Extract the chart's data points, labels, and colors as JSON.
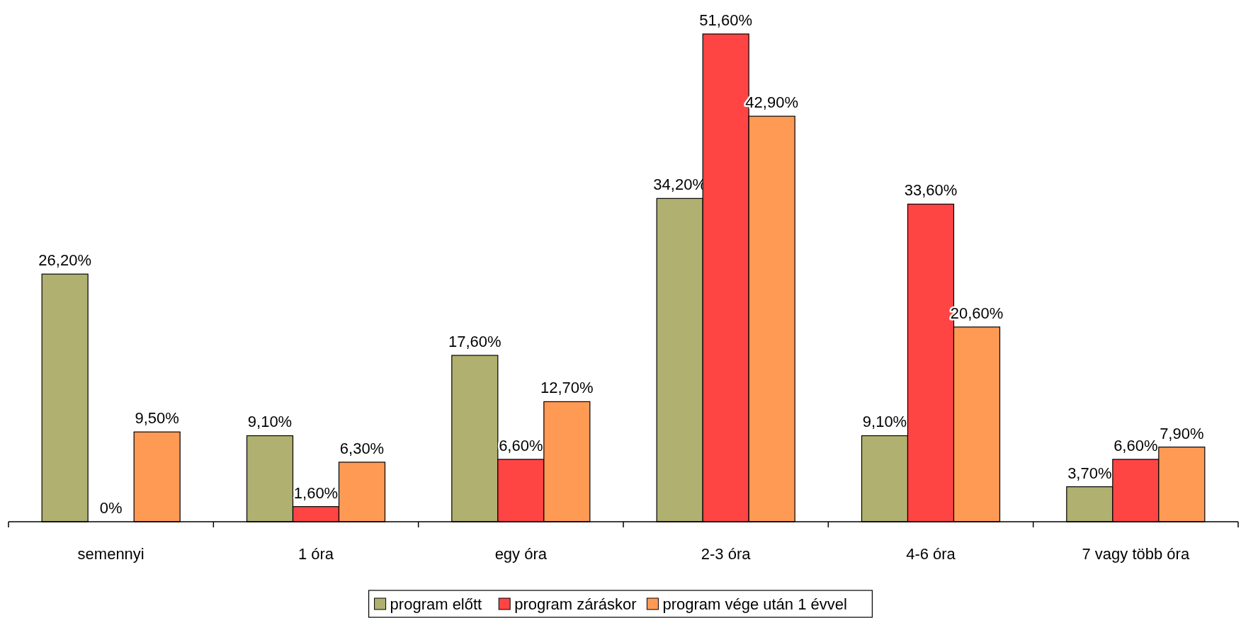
{
  "chart_data": {
    "type": "bar",
    "categories": [
      "semennyi",
      "1 óra",
      "egy óra",
      "2-3 óra",
      "4-6 óra",
      "7 vagy több óra"
    ],
    "series": [
      {
        "name": "program előtt",
        "color": "#b0b070",
        "values": [
          26.2,
          9.1,
          17.6,
          34.2,
          9.1,
          3.7
        ],
        "value_labels": [
          "26,20%",
          "9,10%",
          "17,60%",
          "34,20%",
          "9,10%",
          "3,70%"
        ]
      },
      {
        "name": "program záráskor",
        "color": "#ff4444",
        "values": [
          0,
          1.6,
          6.6,
          51.6,
          33.6,
          6.6
        ],
        "value_labels": [
          "0%",
          "1,60%",
          "6,60%",
          "51,60%",
          "33,60%",
          "6,60%"
        ]
      },
      {
        "name": "program vége után 1 évvel",
        "color": "#ff9a55",
        "values": [
          9.5,
          6.3,
          12.7,
          42.9,
          20.6,
          7.9
        ],
        "value_labels": [
          "9,50%",
          "6,30%",
          "12,70%",
          "42,90%",
          "20,60%",
          "7,90%"
        ]
      }
    ],
    "legend": "bottom"
  }
}
